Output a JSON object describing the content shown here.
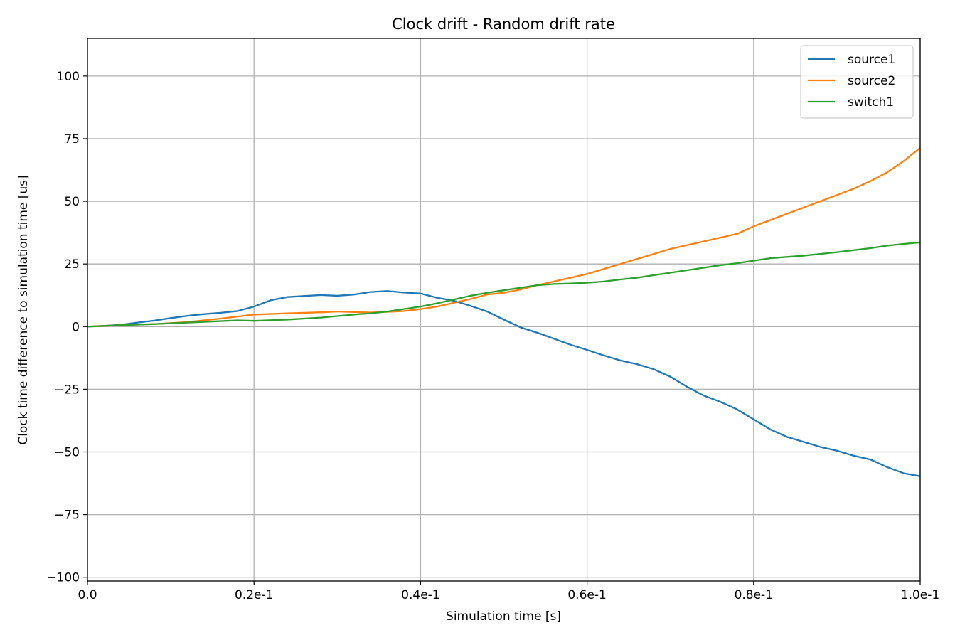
{
  "chart_data": {
    "type": "line",
    "title": "Clock drift - Random drift rate",
    "xlabel": "Simulation time [s]",
    "ylabel": "Clock time difference to simulation time [us]",
    "xlim": [
      0.0,
      0.1
    ],
    "ylim": [
      -101.5,
      115.0
    ],
    "x_ticks": [
      {
        "value": 0.0,
        "label": "0.0"
      },
      {
        "value": 0.02,
        "label": "0.2e-1"
      },
      {
        "value": 0.04,
        "label": "0.4e-1"
      },
      {
        "value": 0.06,
        "label": "0.6e-1"
      },
      {
        "value": 0.08,
        "label": "0.8e-1"
      },
      {
        "value": 0.1,
        "label": "1.0e-1"
      }
    ],
    "y_ticks": [
      {
        "value": 100,
        "label": "100"
      },
      {
        "value": 75,
        "label": "75"
      },
      {
        "value": 50,
        "label": "50"
      },
      {
        "value": 25,
        "label": "25"
      },
      {
        "value": 0,
        "label": "0"
      },
      {
        "value": -25,
        "label": "−25"
      },
      {
        "value": -50,
        "label": "−50"
      },
      {
        "value": -75,
        "label": "−75"
      },
      {
        "value": -100,
        "label": "−100"
      }
    ],
    "grid": true,
    "legend_position": "top-right",
    "series": [
      {
        "name": "source1",
        "color": "#1f77b4",
        "points": [
          [
            0.0,
            0.0
          ],
          [
            0.002,
            0.3
          ],
          [
            0.004,
            0.7
          ],
          [
            0.006,
            1.6
          ],
          [
            0.008,
            2.4
          ],
          [
            0.01,
            3.4
          ],
          [
            0.012,
            4.3
          ],
          [
            0.014,
            5.0
          ],
          [
            0.016,
            5.5
          ],
          [
            0.018,
            6.2
          ],
          [
            0.02,
            8.0
          ],
          [
            0.022,
            10.5
          ],
          [
            0.024,
            11.8
          ],
          [
            0.026,
            12.2
          ],
          [
            0.028,
            12.6
          ],
          [
            0.03,
            12.3
          ],
          [
            0.032,
            12.8
          ],
          [
            0.034,
            13.8
          ],
          [
            0.036,
            14.2
          ],
          [
            0.038,
            13.6
          ],
          [
            0.04,
            13.2
          ],
          [
            0.042,
            11.5
          ],
          [
            0.044,
            10.3
          ],
          [
            0.046,
            8.3
          ],
          [
            0.048,
            6.0
          ],
          [
            0.05,
            2.8
          ],
          [
            0.052,
            -0.3
          ],
          [
            0.054,
            -2.4
          ],
          [
            0.056,
            -4.8
          ],
          [
            0.058,
            -7.2
          ],
          [
            0.06,
            -9.3
          ],
          [
            0.062,
            -11.5
          ],
          [
            0.064,
            -13.5
          ],
          [
            0.066,
            -15.0
          ],
          [
            0.068,
            -17.0
          ],
          [
            0.07,
            -20.0
          ],
          [
            0.072,
            -24.0
          ],
          [
            0.074,
            -27.5
          ],
          [
            0.076,
            -30.0
          ],
          [
            0.078,
            -33.0
          ],
          [
            0.08,
            -37.0
          ],
          [
            0.082,
            -41.0
          ],
          [
            0.084,
            -44.0
          ],
          [
            0.086,
            -46.0
          ],
          [
            0.088,
            -48.0
          ],
          [
            0.09,
            -49.5
          ],
          [
            0.092,
            -51.5
          ],
          [
            0.094,
            -53.0
          ],
          [
            0.096,
            -56.0
          ],
          [
            0.098,
            -58.5
          ],
          [
            0.1,
            -59.7
          ]
        ]
      },
      {
        "name": "source2",
        "color": "#ff7f0e",
        "points": [
          [
            0.0,
            0.0
          ],
          [
            0.004,
            0.6
          ],
          [
            0.008,
            1.0
          ],
          [
            0.012,
            1.8
          ],
          [
            0.016,
            3.2
          ],
          [
            0.02,
            4.8
          ],
          [
            0.024,
            5.3
          ],
          [
            0.028,
            5.7
          ],
          [
            0.03,
            6.0
          ],
          [
            0.034,
            5.6
          ],
          [
            0.038,
            6.2
          ],
          [
            0.04,
            7.0
          ],
          [
            0.042,
            8.0
          ],
          [
            0.044,
            9.5
          ],
          [
            0.046,
            11.0
          ],
          [
            0.048,
            12.8
          ],
          [
            0.05,
            13.5
          ],
          [
            0.052,
            14.8
          ],
          [
            0.054,
            16.5
          ],
          [
            0.056,
            18.0
          ],
          [
            0.058,
            19.5
          ],
          [
            0.06,
            21.0
          ],
          [
            0.062,
            23.0
          ],
          [
            0.064,
            25.0
          ],
          [
            0.066,
            27.0
          ],
          [
            0.068,
            29.0
          ],
          [
            0.07,
            31.0
          ],
          [
            0.072,
            32.5
          ],
          [
            0.074,
            34.0
          ],
          [
            0.076,
            35.5
          ],
          [
            0.078,
            37.0
          ],
          [
            0.08,
            40.0
          ],
          [
            0.082,
            42.5
          ],
          [
            0.084,
            45.0
          ],
          [
            0.086,
            47.5
          ],
          [
            0.088,
            50.0
          ],
          [
            0.09,
            52.5
          ],
          [
            0.092,
            55.0
          ],
          [
            0.094,
            58.0
          ],
          [
            0.096,
            61.5
          ],
          [
            0.098,
            66.0
          ],
          [
            0.1,
            71.3
          ]
        ]
      },
      {
        "name": "switch1",
        "color": "#2ca02c",
        "points": [
          [
            0.0,
            0.0
          ],
          [
            0.004,
            0.6
          ],
          [
            0.008,
            1.0
          ],
          [
            0.012,
            1.6
          ],
          [
            0.016,
            2.2
          ],
          [
            0.018,
            2.5
          ],
          [
            0.02,
            2.3
          ],
          [
            0.024,
            2.8
          ],
          [
            0.028,
            3.6
          ],
          [
            0.03,
            4.2
          ],
          [
            0.032,
            4.8
          ],
          [
            0.034,
            5.3
          ],
          [
            0.036,
            6.0
          ],
          [
            0.038,
            7.0
          ],
          [
            0.04,
            8.0
          ],
          [
            0.042,
            9.3
          ],
          [
            0.044,
            10.8
          ],
          [
            0.046,
            12.3
          ],
          [
            0.048,
            13.5
          ],
          [
            0.05,
            14.5
          ],
          [
            0.052,
            15.5
          ],
          [
            0.054,
            16.5
          ],
          [
            0.056,
            17.0
          ],
          [
            0.058,
            17.2
          ],
          [
            0.06,
            17.5
          ],
          [
            0.062,
            18.0
          ],
          [
            0.064,
            18.8
          ],
          [
            0.066,
            19.5
          ],
          [
            0.068,
            20.5
          ],
          [
            0.07,
            21.5
          ],
          [
            0.072,
            22.5
          ],
          [
            0.074,
            23.5
          ],
          [
            0.076,
            24.5
          ],
          [
            0.078,
            25.3
          ],
          [
            0.08,
            26.3
          ],
          [
            0.082,
            27.3
          ],
          [
            0.084,
            27.8
          ],
          [
            0.086,
            28.3
          ],
          [
            0.088,
            29.0
          ],
          [
            0.09,
            29.7
          ],
          [
            0.092,
            30.5
          ],
          [
            0.094,
            31.3
          ],
          [
            0.096,
            32.3
          ],
          [
            0.098,
            33.0
          ],
          [
            0.1,
            33.6
          ]
        ]
      }
    ]
  }
}
